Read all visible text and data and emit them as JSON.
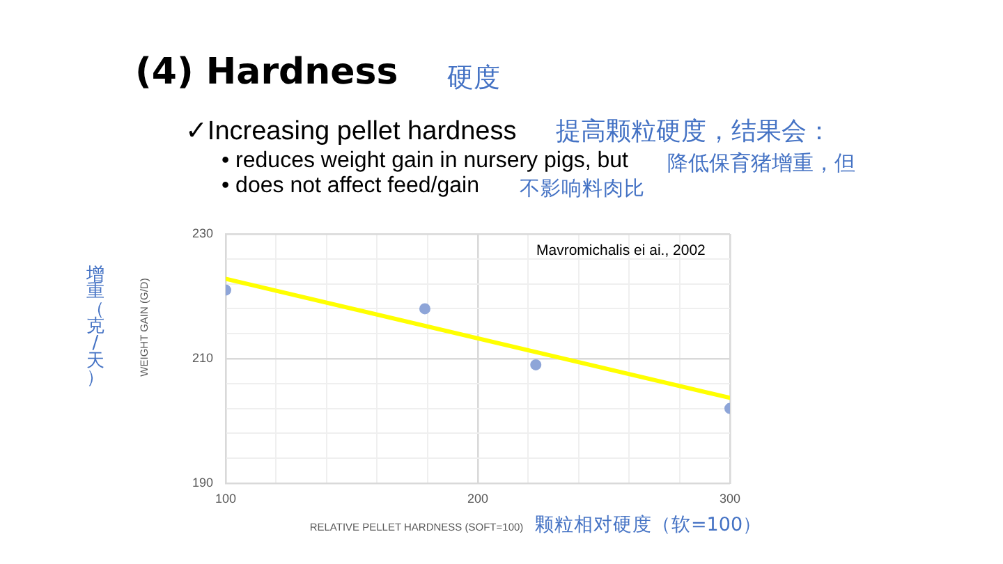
{
  "chart_data": {
    "type": "scatter",
    "title": "(4) Hardness",
    "subtitle": "硬度",
    "xlabel": "RELATIVE PELLET HARDNESS (SOFT=100)",
    "ylabel": "WEIGHT GAIN (G/D)",
    "annotations": [
      "✓Increasing pellet hardness",
      "提高颗粒硬度，结果会：",
      "• reduces weight gain in nursery pigs, but",
      "降低保育猪增重，但",
      "• does not affect feed/gain",
      "不影响料肉比",
      "Mavromichalis ei ai., 2002",
      "增重（克/天）",
      "颗粒相对硬度（软=100）"
    ],
    "x": [
      100,
      179,
      223,
      300
    ],
    "series": [
      {
        "color": "#8ea5d8",
        "values": [
          221,
          218,
          209,
          202
        ]
      },
      {
        "type": "line",
        "color": "#ffff00",
        "x": [
          100,
          300
        ],
        "values": [
          222.8,
          203.7
        ],
        "marker": "none"
      }
    ],
    "xlim": [
      100,
      300
    ],
    "xticks": [
      100,
      {
        "value": 120,
        "label": null
      },
      {
        "value": 140,
        "label": null
      },
      {
        "value": 160,
        "label": null
      },
      {
        "value": 180,
        "label": null
      },
      200,
      {
        "value": 220,
        "label": null
      },
      {
        "value": 240,
        "label": null
      },
      {
        "value": 260,
        "label": null
      },
      {
        "value": 280,
        "label": null
      },
      300
    ],
    "ylim": [
      190,
      230
    ],
    "yticks": [
      190,
      {
        "value": 194,
        "label": null
      },
      {
        "value": 198,
        "label": null
      },
      {
        "value": 202,
        "label": null
      },
      {
        "value": 206,
        "label": null
      },
      210,
      {
        "value": 214,
        "label": null
      },
      {
        "value": 218,
        "label": null
      },
      {
        "value": 222,
        "label": null
      },
      {
        "value": 226,
        "label": null
      },
      230
    ],
    "grid": true,
    "marker": "circle"
  }
}
